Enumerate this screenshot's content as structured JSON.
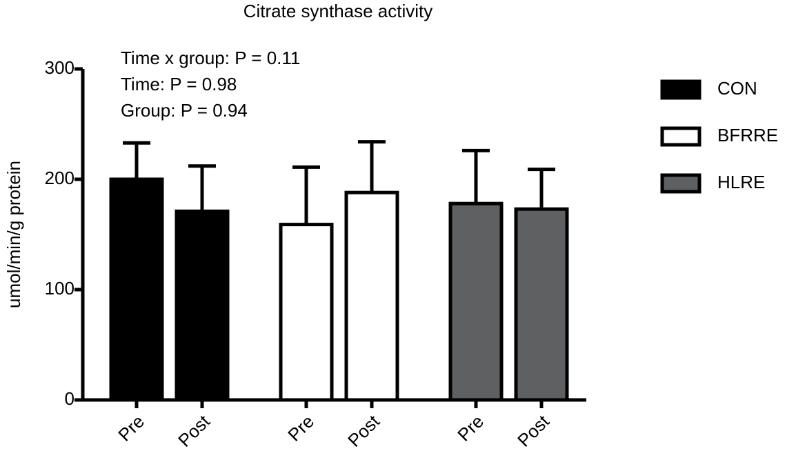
{
  "chart_data": {
    "type": "bar",
    "title": "Citrate synthase activity",
    "y_label": "umol/min/g protein",
    "annotations": [
      "Time x group: P = 0.11",
      "Time: P = 0.98",
      "Group: P = 0.94"
    ],
    "categories": [
      "Pre",
      "Post",
      "Pre",
      "Post",
      "Pre",
      "Post"
    ],
    "series": [
      {
        "name": "CON",
        "color": "#000000",
        "values": [
          200,
          171,
          null,
          null,
          null,
          null
        ],
        "errors": [
          33,
          41,
          null,
          null,
          null,
          null
        ]
      },
      {
        "name": "BFRRE",
        "color": "#ffffff",
        "values": [
          null,
          null,
          159,
          188,
          null,
          null
        ],
        "errors": [
          null,
          null,
          52,
          46,
          null,
          null
        ]
      },
      {
        "name": "HLRE",
        "color": "#5f6062",
        "values": [
          null,
          null,
          null,
          null,
          178,
          173
        ],
        "errors": [
          null,
          null,
          null,
          null,
          48,
          36
        ]
      }
    ],
    "ylim": [
      0,
      300
    ],
    "yticks": [
      0,
      100,
      200,
      300
    ]
  }
}
